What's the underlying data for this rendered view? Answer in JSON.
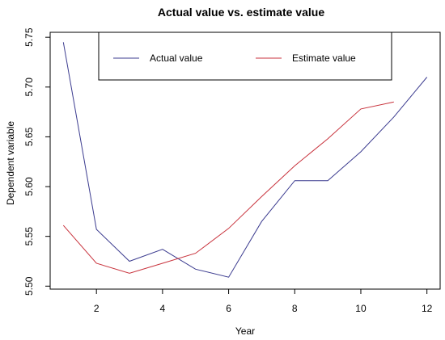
{
  "chart_data": {
    "type": "line",
    "title": "Actual value vs. estimate value",
    "xlabel": "Year",
    "ylabel": "Dependent variable",
    "xlim": [
      0.6,
      12.4
    ],
    "ylim": [
      5.497,
      5.755
    ],
    "xticks": [
      2,
      4,
      6,
      8,
      10,
      12
    ],
    "yticks": [
      5.5,
      5.55,
      5.6,
      5.65,
      5.7,
      5.75
    ],
    "ytick_labels": [
      "5.50",
      "5.55",
      "5.60",
      "5.65",
      "5.70",
      "5.75"
    ],
    "grid": false,
    "legend_position": "top",
    "series": [
      {
        "name": "Actual value",
        "color": "#3b3b8f",
        "x": [
          1,
          2,
          3,
          4,
          5,
          6,
          7,
          8,
          9,
          10,
          11,
          12
        ],
        "values": [
          5.745,
          5.557,
          5.525,
          5.537,
          5.517,
          5.509,
          5.565,
          5.606,
          5.606,
          5.635,
          5.67,
          5.71
        ]
      },
      {
        "name": "Estimate value",
        "color": "#c8323c",
        "x": [
          1,
          2,
          3,
          4,
          5,
          6,
          7,
          8,
          9,
          10,
          11
        ],
        "values": [
          5.561,
          5.523,
          5.513,
          5.523,
          5.533,
          5.558,
          5.59,
          5.621,
          5.648,
          5.678,
          5.685
        ]
      }
    ]
  }
}
